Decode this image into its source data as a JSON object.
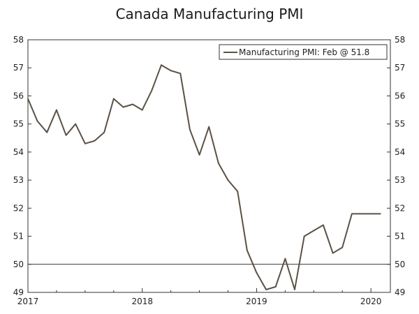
{
  "chart_data": {
    "type": "line",
    "title": "Canada Manufacturing PMI",
    "xlabel": "",
    "ylabel": "",
    "ylim": [
      49,
      58
    ],
    "yticks": [
      49,
      50,
      51,
      52,
      53,
      54,
      55,
      56,
      57,
      58
    ],
    "xlim": [
      2017.0,
      2020.17
    ],
    "xticks": [
      {
        "value": 2017,
        "label": "2017"
      },
      {
        "value": 2018,
        "label": "2018"
      },
      {
        "value": 2019,
        "label": "2019"
      },
      {
        "value": 2020,
        "label": "2020"
      }
    ],
    "reference_line": 50,
    "series": [
      {
        "name": "Manufacturing PMI: Feb @ 51.8",
        "color": "#5b5146",
        "x": [
          2017.0,
          2017.0833,
          2017.1667,
          2017.25,
          2017.3333,
          2017.4167,
          2017.5,
          2017.5833,
          2017.6667,
          2017.75,
          2017.8333,
          2017.9167,
          2018.0,
          2018.0833,
          2018.1667,
          2018.25,
          2018.3333,
          2018.4167,
          2018.5,
          2018.5833,
          2018.6667,
          2018.75,
          2018.8333,
          2018.9167,
          2019.0,
          2019.0833,
          2019.1667,
          2019.25,
          2019.3333,
          2019.4167,
          2019.5,
          2019.5833,
          2019.6667,
          2019.75,
          2019.8333,
          2019.9167,
          2020.0,
          2020.0833
        ],
        "values": [
          55.9,
          55.1,
          54.7,
          55.5,
          54.6,
          55.0,
          54.3,
          54.4,
          54.7,
          55.9,
          55.6,
          55.7,
          55.5,
          56.2,
          57.1,
          56.9,
          56.8,
          54.8,
          53.9,
          54.9,
          53.6,
          53.0,
          52.6,
          50.5,
          49.7,
          49.1,
          49.2,
          50.2,
          49.1,
          51.0,
          51.2,
          51.4,
          50.4,
          50.6,
          51.8,
          51.8,
          51.8,
          51.8
        ]
      }
    ],
    "legend": {
      "label": "Manufacturing PMI: Feb @ 51.8",
      "position": "top-right"
    }
  }
}
